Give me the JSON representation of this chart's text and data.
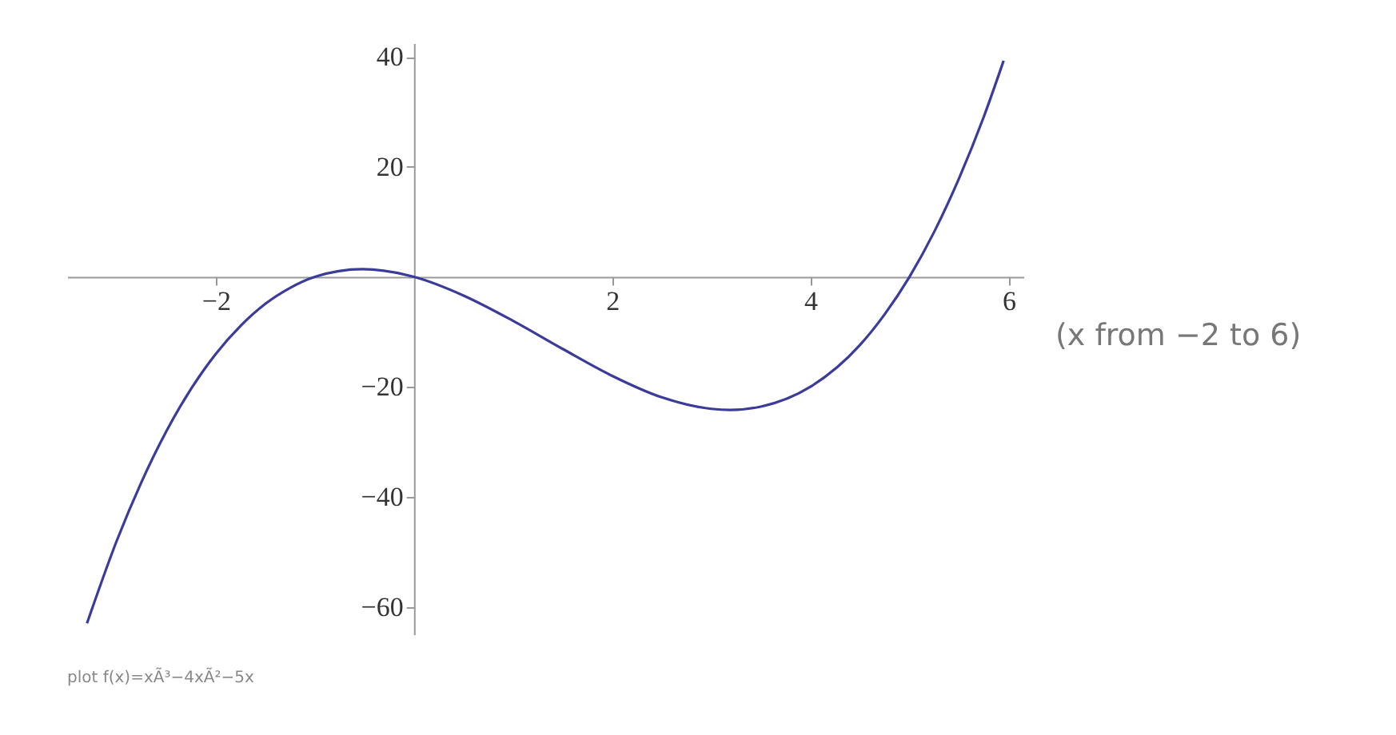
{
  "chart_data": {
    "type": "line",
    "x": [
      -3.3,
      -3,
      -2.75,
      -2.5,
      -2,
      -1.75,
      -1.5,
      -1.25,
      -1,
      -0.52,
      0,
      0.5,
      1,
      1.5,
      2,
      2.5,
      3,
      3.19,
      3.5,
      4,
      4.5,
      4.75,
      5,
      5.25,
      5.5,
      5.75,
      5.95
    ],
    "series": [
      {
        "color": "#3b3b9b",
        "values": [
          -63.0,
          -48,
          -37.3,
          -28.1,
          -14,
          -8.9,
          -4.9,
          -2,
          0,
          1.4,
          0,
          -3.4,
          -8,
          -13.1,
          -18,
          -21.9,
          -24,
          -24.2,
          -23.6,
          -20,
          -12.4,
          -6.8,
          0,
          8.2,
          17.9,
          29.1,
          39.3
        ]
      }
    ],
    "xlim": [
      -3.5,
      6.15
    ],
    "ylim": [
      -65,
      42.5
    ],
    "xticks": [
      -2,
      2,
      4,
      6
    ],
    "yticks": [
      -60,
      -40,
      -20,
      20,
      40
    ],
    "grid": false,
    "legend": false,
    "marker": "none",
    "line_style": "solid",
    "annotations": [
      "(x from −2 to 6)",
      "plot f(x)=xÃ³−4xÃ²−5x"
    ]
  }
}
